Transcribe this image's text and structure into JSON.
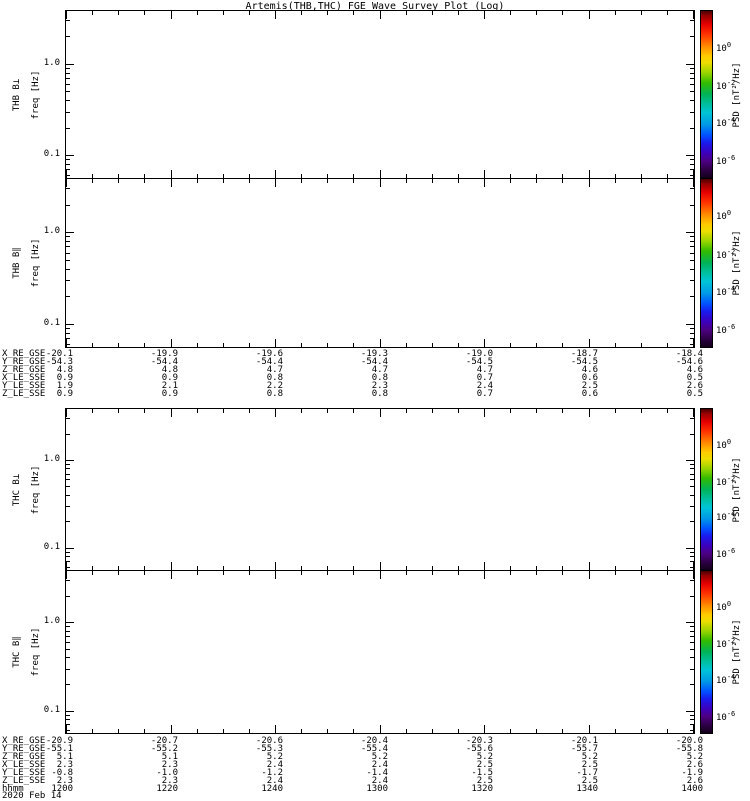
{
  "title": "Artemis(THB,THC) FGE Wave Survey Plot (Log)",
  "chart_data": [
    {
      "type": "heatmap",
      "title": "THB B⊥",
      "ylabel": "freq [Hz]",
      "yscale": "log",
      "ylim": [
        0.056,
        3.8
      ],
      "ytick_labels": [
        "1.0",
        "0.1"
      ],
      "x_ticks_hhmm": [
        "1200",
        "1220",
        "1240",
        "1300",
        "1320",
        "1340",
        "1400"
      ],
      "values": [],
      "no_data_rendered": true,
      "colorbar": {
        "label": "PSD [nT²/Hz]",
        "scale": "log",
        "colormap": "rainbow",
        "tick_labels": [
          "10^0",
          "10^-2",
          "10^-4",
          "10^-6"
        ]
      }
    },
    {
      "type": "heatmap",
      "title": "THB B∥",
      "ylabel": "freq [Hz]",
      "yscale": "log",
      "ylim": [
        0.056,
        3.8
      ],
      "ytick_labels": [
        "1.0",
        "0.1"
      ],
      "x_ticks_hhmm": [
        "1200",
        "1220",
        "1240",
        "1300",
        "1320",
        "1340",
        "1400"
      ],
      "values": [],
      "no_data_rendered": true,
      "colorbar": {
        "label": "PSD [nT²/Hz]",
        "scale": "log",
        "colormap": "rainbow",
        "tick_labels": [
          "10^0",
          "10^-2",
          "10^-4",
          "10^-6"
        ]
      }
    },
    {
      "type": "heatmap",
      "title": "THC B⊥",
      "ylabel": "freq [Hz]",
      "yscale": "log",
      "ylim": [
        0.056,
        3.8
      ],
      "ytick_labels": [
        "1.0",
        "0.1"
      ],
      "x_ticks_hhmm": [
        "1200",
        "1220",
        "1240",
        "1300",
        "1320",
        "1340",
        "1400"
      ],
      "values": [],
      "no_data_rendered": true,
      "colorbar": {
        "label": "PSD [nT²/Hz]",
        "scale": "log",
        "colormap": "rainbow",
        "tick_labels": [
          "10^0",
          "10^-2",
          "10^-4",
          "10^-6"
        ]
      }
    },
    {
      "type": "heatmap",
      "title": "THC B∥",
      "ylabel": "freq [Hz]",
      "yscale": "log",
      "ylim": [
        0.056,
        3.8
      ],
      "ytick_labels": [
        "1.0",
        "0.1"
      ],
      "x_ticks_hhmm": [
        "1200",
        "1220",
        "1240",
        "1300",
        "1320",
        "1340",
        "1400"
      ],
      "values": [],
      "no_data_rendered": true,
      "colorbar": {
        "label": "PSD [nT²/Hz]",
        "scale": "log",
        "colormap": "rainbow",
        "tick_labels": [
          "10^0",
          "10^-2",
          "10^-4",
          "10^-6"
        ]
      }
    }
  ],
  "ephemeris": {
    "thb": {
      "rows": [
        {
          "label": "X_RE_GSE",
          "values": [
            "-20.1",
            "-19.9",
            "-19.6",
            "-19.3",
            "-19.0",
            "-18.7",
            "-18.4"
          ]
        },
        {
          "label": "Y_RE_GSE",
          "values": [
            "-54.3",
            "-54.4",
            "-54.4",
            "-54.4",
            "-54.5",
            "-54.5",
            "-54.6"
          ]
        },
        {
          "label": "Z_RE_GSE",
          "values": [
            "4.8",
            "4.8",
            "4.7",
            "4.7",
            "4.7",
            "4.6",
            "4.6"
          ]
        },
        {
          "label": "X_LE_SSE",
          "values": [
            "0.9",
            "0.9",
            "0.8",
            "0.8",
            "0.7",
            "0.6",
            "0.5"
          ]
        },
        {
          "label": "Y_LE_SSE",
          "values": [
            "1.9",
            "2.1",
            "2.2",
            "2.3",
            "2.4",
            "2.5",
            "2.6"
          ]
        },
        {
          "label": "Z_LE_SSE",
          "values": [
            "0.9",
            "0.9",
            "0.8",
            "0.8",
            "0.7",
            "0.6",
            "0.5"
          ]
        }
      ]
    },
    "thc": {
      "rows": [
        {
          "label": "X_RE_GSE",
          "values": [
            "-20.9",
            "-20.7",
            "-20.6",
            "-20.4",
            "-20.3",
            "-20.1",
            "-20.0"
          ]
        },
        {
          "label": "Y_RE_GSE",
          "values": [
            "-55.1",
            "-55.2",
            "-55.3",
            "-55.4",
            "-55.6",
            "-55.7",
            "-55.8"
          ]
        },
        {
          "label": "Z_RE_GSE",
          "values": [
            "5.1",
            "5.1",
            "5.2",
            "5.2",
            "5.2",
            "5.2",
            "5.2"
          ]
        },
        {
          "label": "X_LE_SSE",
          "values": [
            "2.3",
            "2.3",
            "2.4",
            "2.4",
            "2.5",
            "2.5",
            "2.6"
          ]
        },
        {
          "label": "Y_LE_SSE",
          "values": [
            "-0.8",
            "-1.0",
            "-1.2",
            "-1.4",
            "-1.5",
            "-1.7",
            "-1.9"
          ]
        },
        {
          "label": "Z_LE_SSE",
          "values": [
            "2.3",
            "2.3",
            "2.4",
            "2.4",
            "2.5",
            "2.5",
            "2.6"
          ]
        },
        {
          "label": "hhmm",
          "values": [
            "1200",
            "1220",
            "1240",
            "1300",
            "1320",
            "1340",
            "1400"
          ]
        }
      ]
    },
    "date_label": "2020 Feb 14"
  }
}
